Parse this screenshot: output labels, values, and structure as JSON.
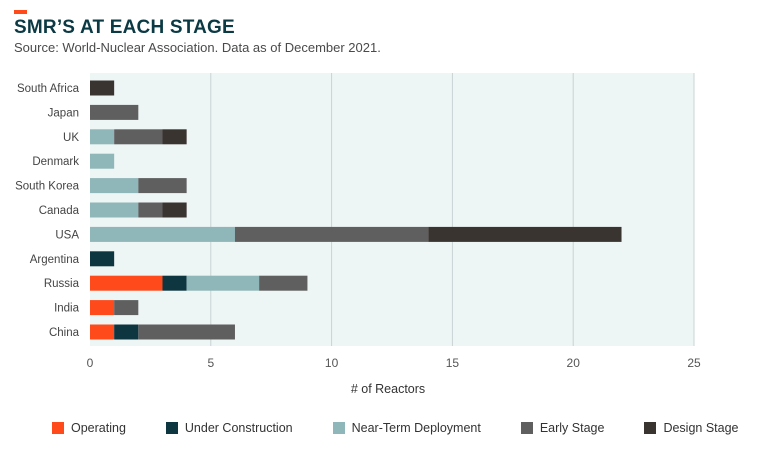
{
  "header": {
    "title": "SMR’S AT EACH STAGE",
    "subtitle": "Source: World-Nuclear Association. Data as of December 2021."
  },
  "colors": {
    "accent": "#ff4a1c",
    "plot_background": "#eef5f5",
    "gridline": "#c9d3d3"
  },
  "chart_data": {
    "type": "bar",
    "orientation": "horizontal",
    "stacked": true,
    "categories": [
      "South Africa",
      "Japan",
      "UK",
      "Denmark",
      "South Korea",
      "Canada",
      "USA",
      "Argentina",
      "Russia",
      "India",
      "China"
    ],
    "series": [
      {
        "name": "Operating",
        "color": "#ff4a1c",
        "values": [
          0,
          0,
          0,
          0,
          0,
          0,
          0,
          0,
          3,
          1,
          1
        ]
      },
      {
        "name": "Under Construction",
        "color": "#0d3640",
        "values": [
          0,
          0,
          0,
          0,
          0,
          0,
          0,
          1,
          1,
          0,
          1
        ]
      },
      {
        "name": "Near-Term Deployment",
        "color": "#8fb6b8",
        "values": [
          0,
          0,
          1,
          1,
          2,
          2,
          6,
          0,
          3,
          0,
          0
        ]
      },
      {
        "name": "Early Stage",
        "color": "#5f5f5f",
        "values": [
          0,
          2,
          2,
          0,
          2,
          1,
          8,
          0,
          2,
          1,
          4
        ]
      },
      {
        "name": "Design Stage",
        "color": "#3a3431",
        "values": [
          1,
          0,
          1,
          0,
          0,
          1,
          8,
          0,
          0,
          0,
          0
        ]
      }
    ],
    "xlabel": "# of Reactors",
    "ylabel": "",
    "xlim": [
      0,
      25
    ],
    "xticks": [
      0,
      5,
      10,
      15,
      20,
      25
    ],
    "grid": true,
    "legend_position": "bottom"
  }
}
